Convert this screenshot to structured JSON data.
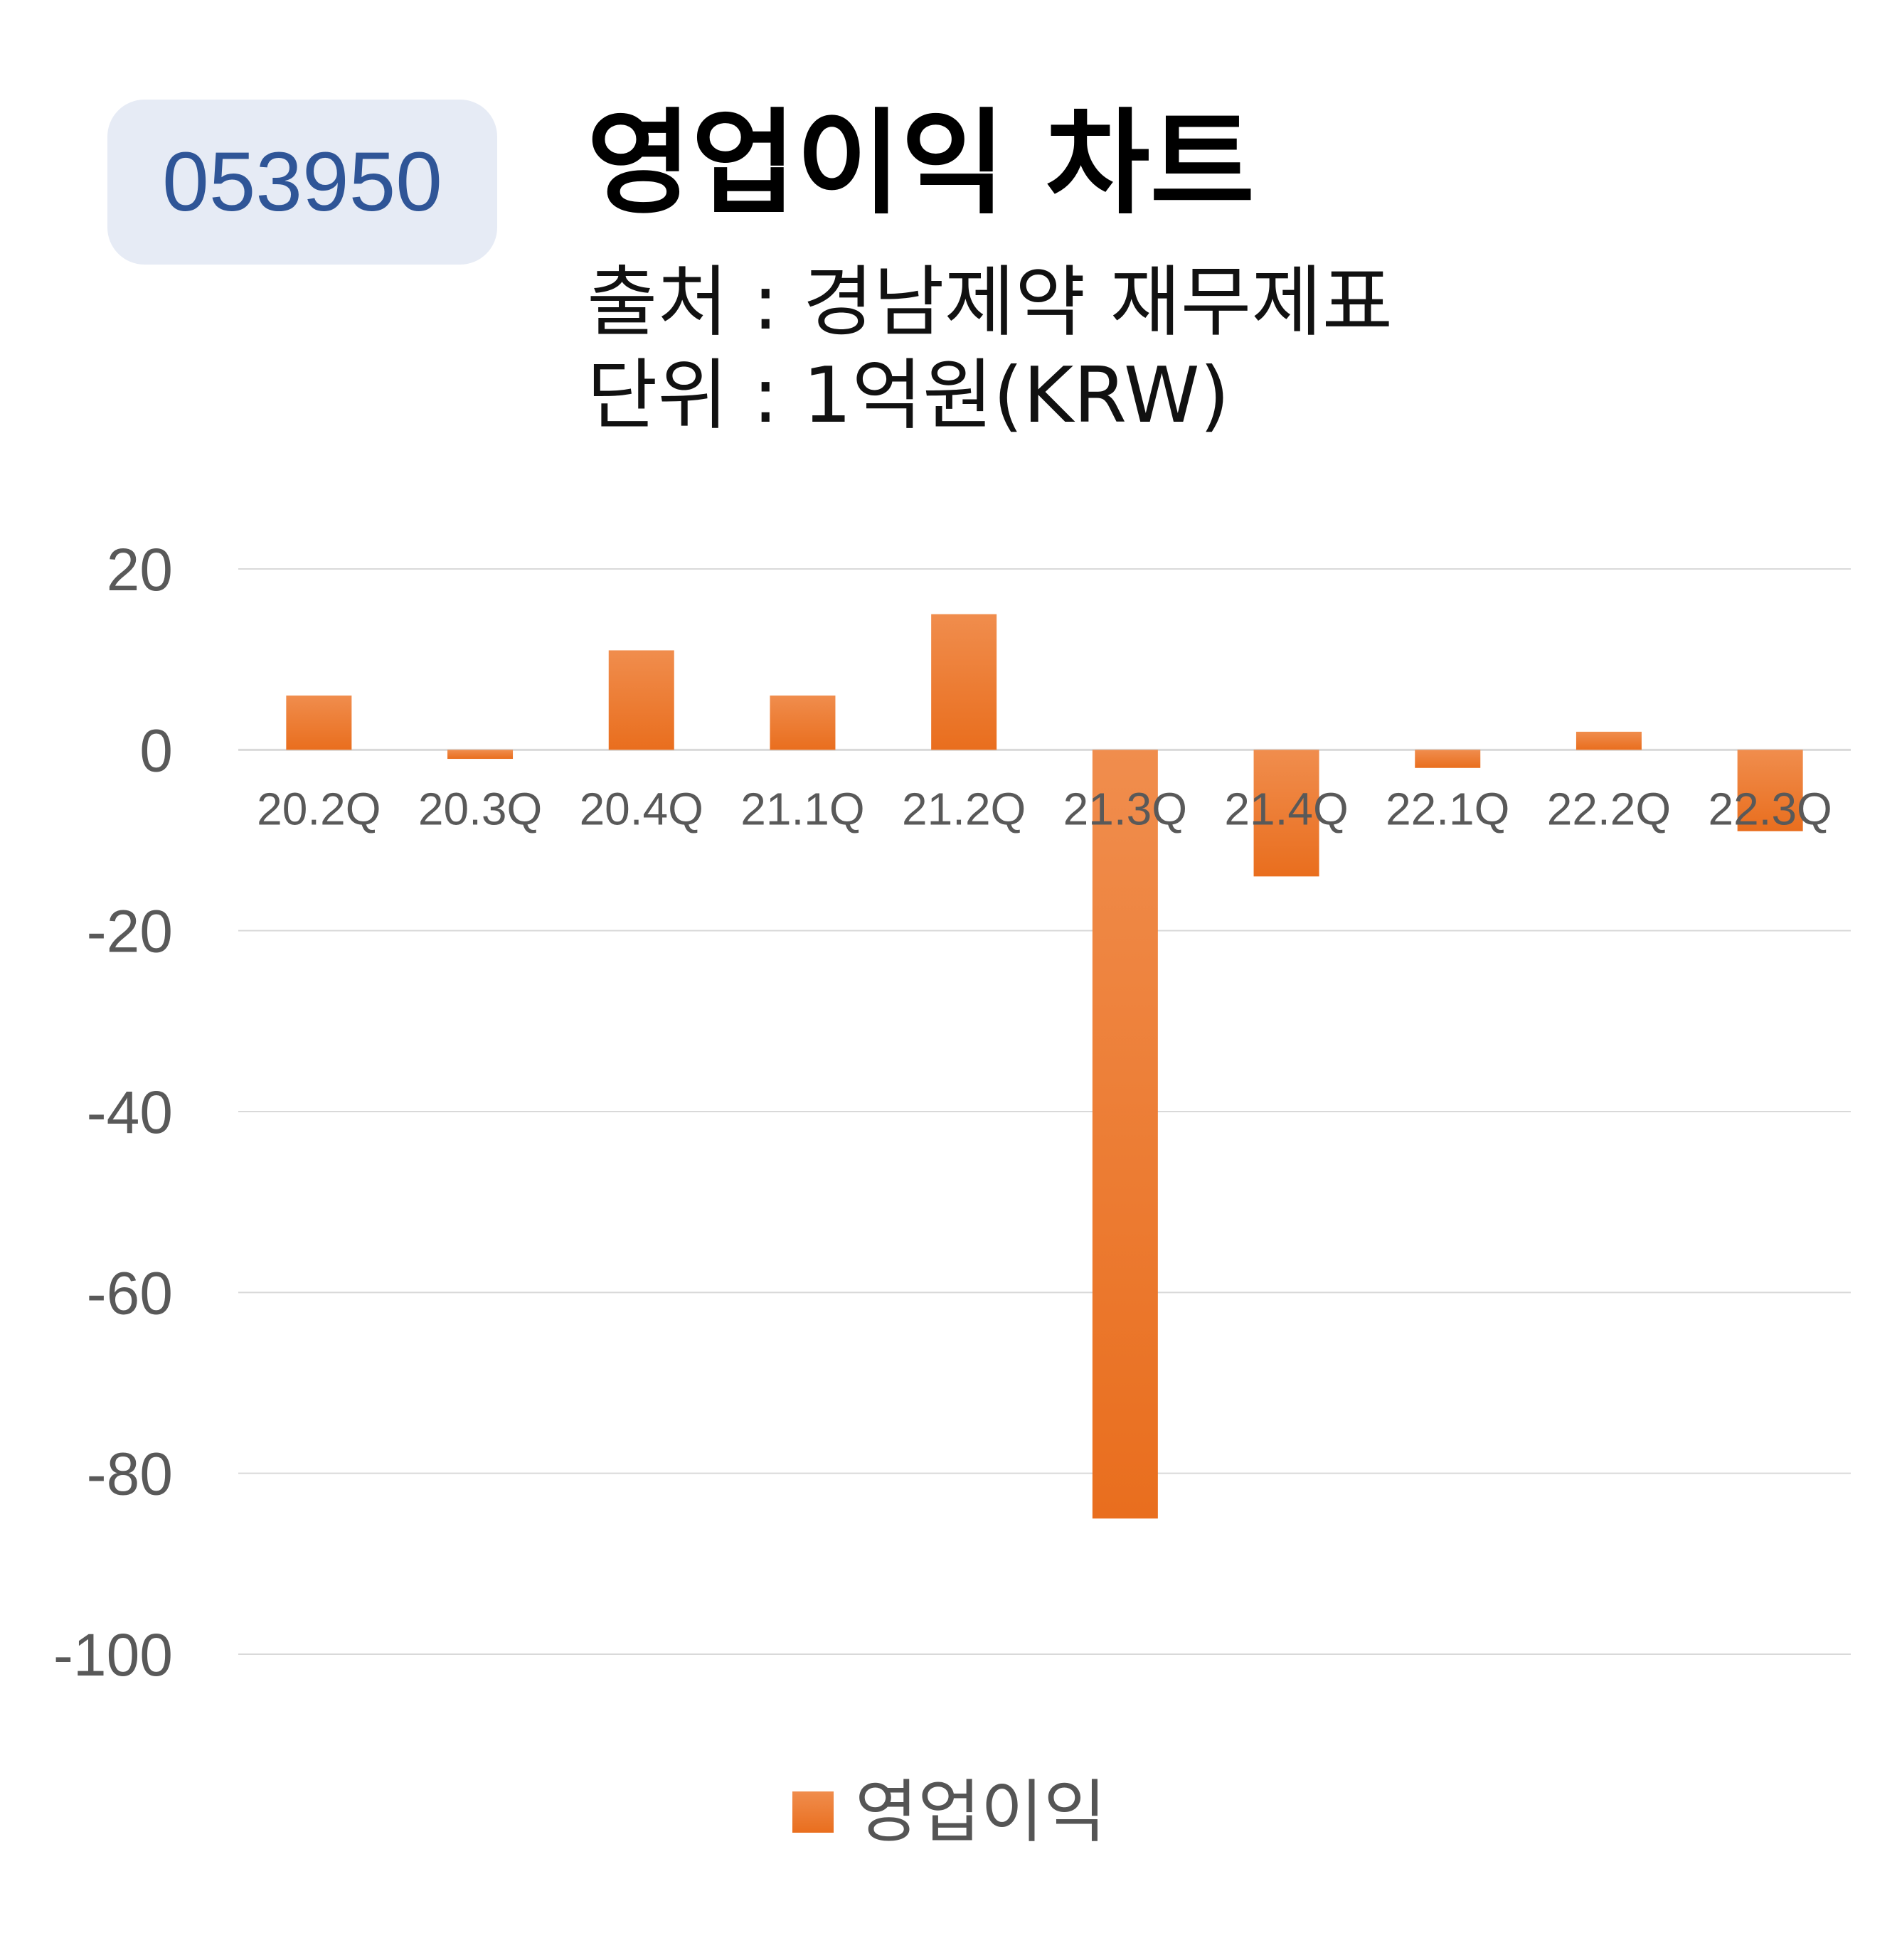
{
  "badge": {
    "code": "053950"
  },
  "header": {
    "title": "영업이익 차트",
    "source": "출처 : 경남제약 재무제표",
    "unit": "단위 : 1억원(KRW)"
  },
  "colors": {
    "bar": "#ee7a2d",
    "gridline": "#d9d9d9",
    "axis_text": "#595959",
    "badge_text": "#2f5597"
  },
  "chart_data": {
    "type": "bar",
    "title": "영업이익 차트",
    "categories": [
      "20.2Q",
      "20.3Q",
      "20.4Q",
      "21.1Q",
      "21.2Q",
      "21.3Q",
      "21.4Q",
      "22.1Q",
      "22.2Q",
      "22.3Q"
    ],
    "series": [
      {
        "name": "영업이익",
        "values": [
          6,
          -1,
          11,
          6,
          15,
          -85,
          -14,
          -2,
          2,
          -9
        ]
      }
    ],
    "yticks": [
      20,
      0,
      -20,
      -40,
      -60,
      -80,
      -100
    ],
    "ylim": [
      -100,
      20
    ],
    "grid": true,
    "legend": "bottom-center"
  }
}
